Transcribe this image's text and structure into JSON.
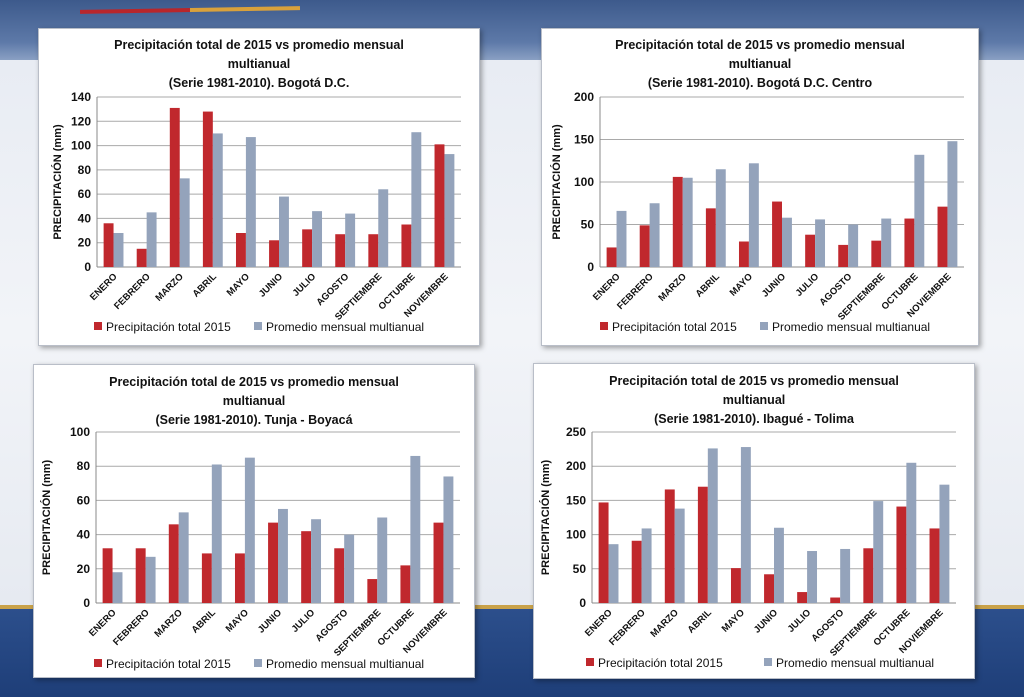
{
  "colors": {
    "series_2015": "#c0282d",
    "series_avg": "#94a3bb",
    "grid": "#a9a9a9"
  },
  "chart_data": [
    {
      "type": "bar",
      "title_lines": [
        "Precipitación total de 2015 vs promedio mensual",
        "multianual",
        "(Serie 1981-2010). Bogotá D.C."
      ],
      "xlabel": "",
      "ylabel": "PRECIPITACIÓN (mm)",
      "ylim": [
        0,
        140
      ],
      "yticks": [
        0,
        20,
        40,
        60,
        80,
        100,
        120,
        140
      ],
      "grid": true,
      "legend": "bottom",
      "categories": [
        "ENERO",
        "FEBRERO",
        "MARZO",
        "ABRIL",
        "MAYO",
        "JUNIO",
        "JULIO",
        "AGOSTO",
        "SEPTIEMBRE",
        "OCTUBRE",
        "NOVIEMBRE"
      ],
      "series": [
        {
          "name": "Precipitación total 2015",
          "values": [
            36,
            15,
            131,
            128,
            28,
            22,
            31,
            27,
            27,
            35,
            101
          ]
        },
        {
          "name": "Promedio mensual multianual",
          "values": [
            28,
            45,
            73,
            110,
            107,
            58,
            46,
            44,
            64,
            111,
            93
          ]
        }
      ]
    },
    {
      "type": "bar",
      "title_lines": [
        "Precipitación total de 2015 vs promedio mensual",
        "multianual",
        "(Serie 1981-2010). Bogotá D.C. Centro"
      ],
      "xlabel": "",
      "ylabel": "PRECIPITACIÓN (mm)",
      "ylim": [
        0,
        200
      ],
      "yticks": [
        0,
        50,
        100,
        150,
        200
      ],
      "grid": true,
      "legend": "bottom",
      "categories": [
        "ENERO",
        "FEBRERO",
        "MARZO",
        "ABRIL",
        "MAYO",
        "JUNIO",
        "JULIO",
        "AGOSTO",
        "SEPTIEMBRE",
        "OCTUBRE",
        "NOVIEMBRE"
      ],
      "series": [
        {
          "name": "Precipitación total 2015",
          "values": [
            23,
            49,
            106,
            69,
            30,
            77,
            38,
            26,
            31,
            57,
            71
          ]
        },
        {
          "name": "Promedio mensual multianual",
          "values": [
            66,
            75,
            105,
            115,
            122,
            58,
            56,
            50,
            57,
            132,
            148
          ]
        }
      ]
    },
    {
      "type": "bar",
      "title_lines": [
        "Precipitación total de 2015 vs promedio mensual",
        "multianual",
        "(Serie 1981-2010). Tunja - Boyacá"
      ],
      "xlabel": "",
      "ylabel": "PRECIPITACIÓN (mm)",
      "ylim": [
        0,
        100
      ],
      "yticks": [
        0,
        20,
        40,
        60,
        80,
        100
      ],
      "grid": true,
      "legend": "bottom",
      "categories": [
        "ENERO",
        "FEBRERO",
        "MARZO",
        "ABRIL",
        "MAYO",
        "JUNIO",
        "JULIO",
        "AGOSTO",
        "SEPTIEMBRE",
        "OCTUBRE",
        "NOVIEMBRE"
      ],
      "series": [
        {
          "name": "Precipitación total 2015",
          "values": [
            32,
            32,
            46,
            29,
            29,
            47,
            42,
            32,
            14,
            22,
            47
          ]
        },
        {
          "name": "Promedio mensual multianual",
          "values": [
            18,
            27,
            53,
            81,
            85,
            55,
            49,
            40,
            50,
            86,
            74
          ]
        }
      ]
    },
    {
      "type": "bar",
      "title_lines": [
        "Precipitación total de 2015 vs promedio mensual",
        "multianual",
        "(Serie 1981-2010). Ibagué - Tolima"
      ],
      "xlabel": "",
      "ylabel": "PRECIPITACIÓN (mm)",
      "ylim": [
        0,
        250
      ],
      "yticks": [
        0,
        50,
        100,
        150,
        200,
        250
      ],
      "grid": true,
      "legend": "bottom",
      "categories": [
        "ENERO",
        "FEBRERO",
        "MARZO",
        "ABRIL",
        "MAYO",
        "JUNIO",
        "JULIO",
        "AGOSTO",
        "SEPTIEMBRE",
        "OCTUBRE",
        "NOVIEMBRE"
      ],
      "series": [
        {
          "name": "Precipitación total 2015",
          "values": [
            147,
            91,
            166,
            170,
            51,
            42,
            16,
            8,
            80,
            141,
            109
          ]
        },
        {
          "name": "Promedio mensual multianual",
          "values": [
            86,
            109,
            138,
            226,
            228,
            110,
            76,
            79,
            149,
            205,
            173
          ]
        }
      ]
    }
  ]
}
